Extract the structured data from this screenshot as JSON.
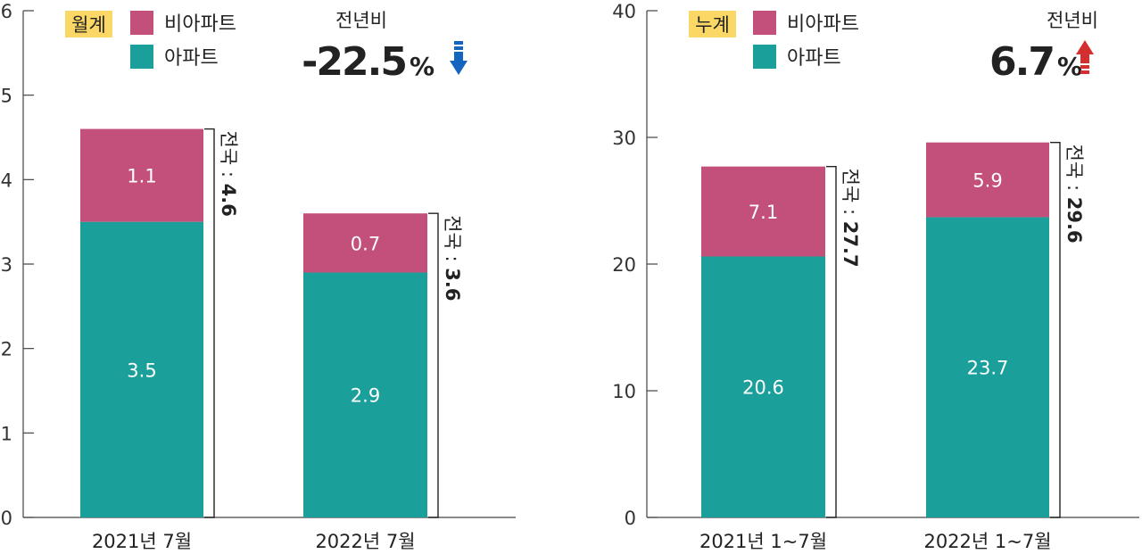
{
  "chart_data": [
    {
      "type": "bar",
      "stacked": true,
      "badge": "월계",
      "categories": [
        "2021년 7월",
        "2022년 7월"
      ],
      "series": [
        {
          "name": "아파트",
          "color": "#1a9f9b",
          "values": [
            3.5,
            2.9
          ]
        },
        {
          "name": "비아파트",
          "color": "#c2507a",
          "values": [
            1.1,
            0.7
          ]
        }
      ],
      "totals": [
        4.6,
        3.6
      ],
      "total_prefix": "전국 : ",
      "yoy_label": "전년비",
      "yoy_value": "-22.5",
      "yoy_unit": "%",
      "yoy_direction": "down",
      "ylim": [
        0,
        6
      ],
      "yticks": [
        0,
        1,
        2,
        3,
        4,
        5,
        6
      ],
      "legend_position": "top-left",
      "grid": false
    },
    {
      "type": "bar",
      "stacked": true,
      "badge": "누계",
      "categories": [
        "2021년 1~7월",
        "2022년 1~7월"
      ],
      "series": [
        {
          "name": "아파트",
          "color": "#1a9f9b",
          "values": [
            20.6,
            23.7
          ]
        },
        {
          "name": "비아파트",
          "color": "#c2507a",
          "values": [
            7.1,
            5.9
          ]
        }
      ],
      "totals": [
        27.7,
        29.6
      ],
      "total_prefix": "전국 : ",
      "yoy_label": "전년비",
      "yoy_value": "6.7",
      "yoy_unit": "%",
      "yoy_direction": "up",
      "ylim": [
        0,
        40
      ],
      "yticks": [
        0,
        10,
        20,
        30,
        40
      ],
      "legend_position": "top-left",
      "grid": false
    }
  ],
  "colors": {
    "badge_bg": "#fbd765",
    "arrow_down": "#1565c0",
    "arrow_up": "#d32f2f",
    "axis": "#444444",
    "value_label": "#ffffff"
  }
}
